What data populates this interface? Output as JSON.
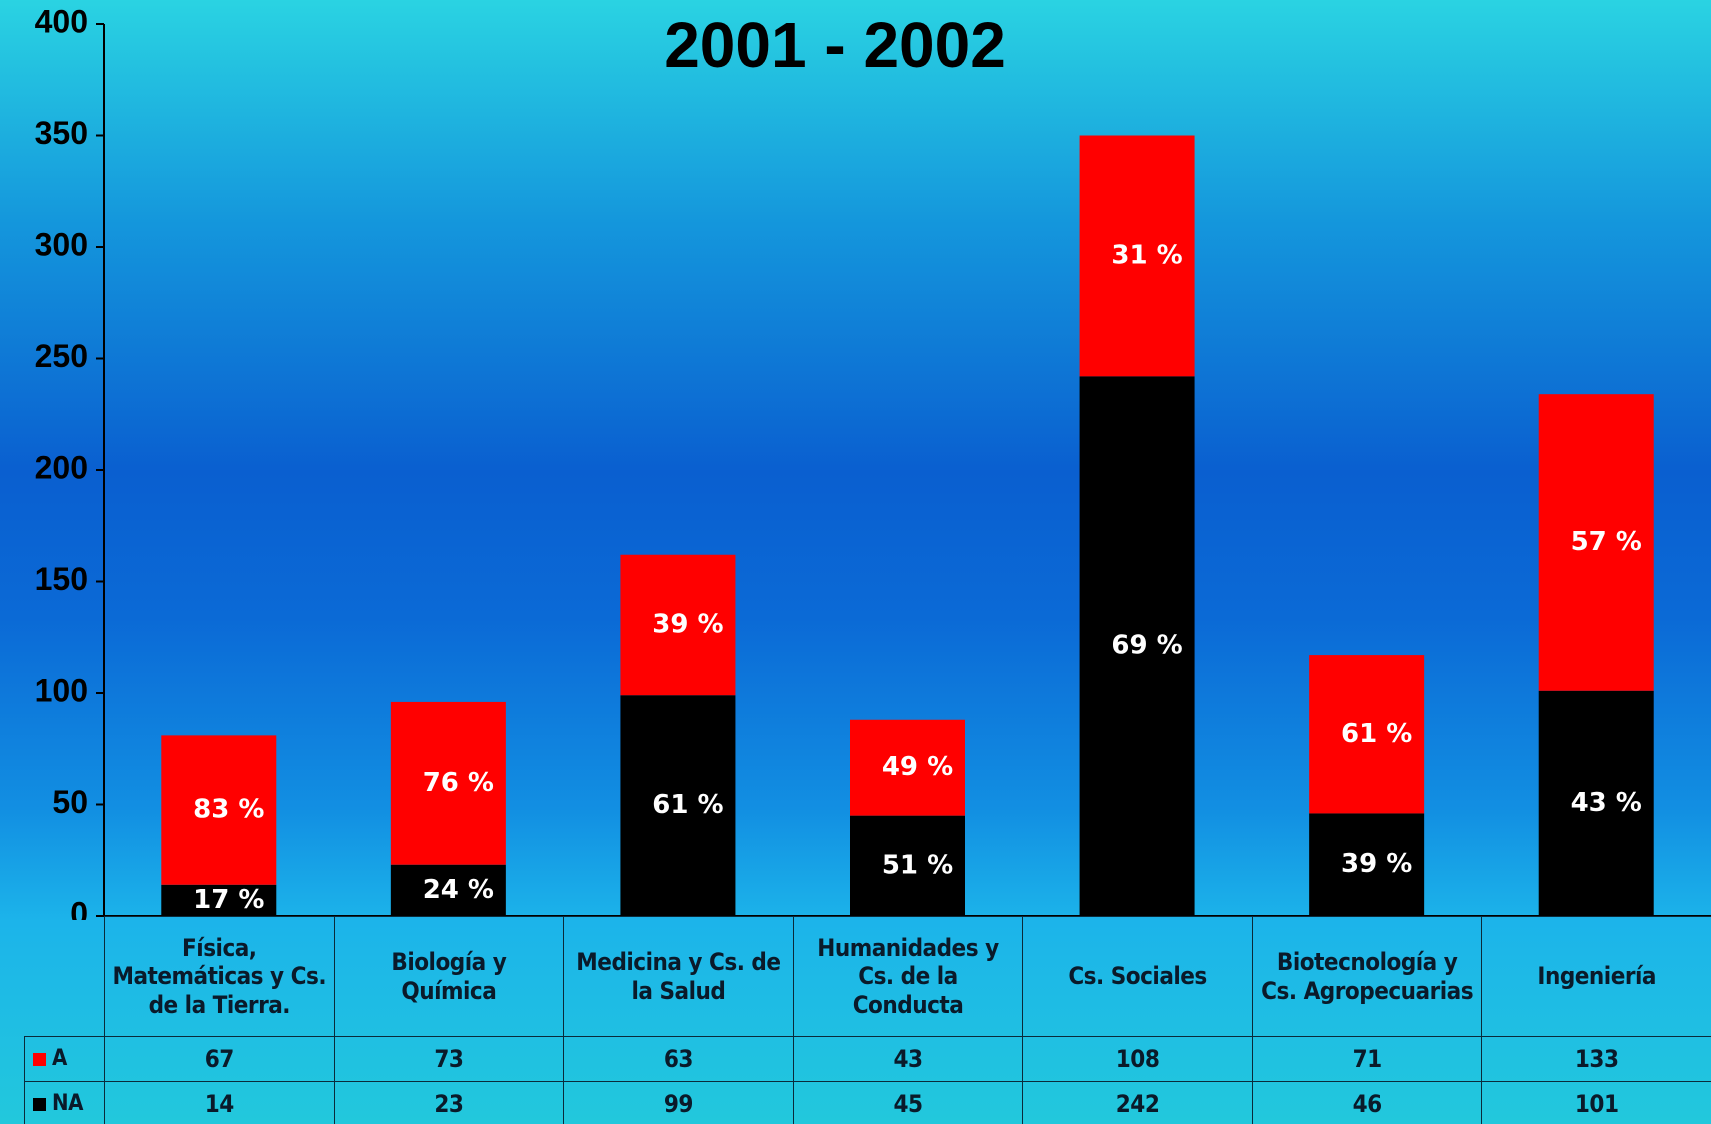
{
  "chart_data": {
    "type": "stacked_bar",
    "title": "2001 - 2002",
    "categories": [
      "Física, Matemáticas y Cs. de la Tierra.",
      "Biología y Química",
      "Medicina y Cs. de la Salud",
      "Humanidades y Cs. de la Conducta",
      "Cs. Sociales",
      "Biotecnología y Cs. Agropecuarias",
      "Ingeniería"
    ],
    "series": [
      {
        "name": "A",
        "color": "#ff0000",
        "values": [
          67,
          73,
          63,
          43,
          108,
          71,
          133
        ],
        "percent_labels": [
          "83 %",
          "76 %",
          "39 %",
          "49 %",
          "31 %",
          "61 %",
          "57 %"
        ]
      },
      {
        "name": "NA",
        "color": "#000000",
        "values": [
          14,
          23,
          99,
          45,
          242,
          46,
          101
        ],
        "percent_labels": [
          "17 %",
          "24 %",
          "61 %",
          "51 %",
          "69 %",
          "39 %",
          "43 %"
        ]
      }
    ],
    "ylim": [
      0,
      400
    ],
    "yticks": [
      0,
      50,
      100,
      150,
      200,
      250,
      300,
      350,
      400
    ]
  }
}
